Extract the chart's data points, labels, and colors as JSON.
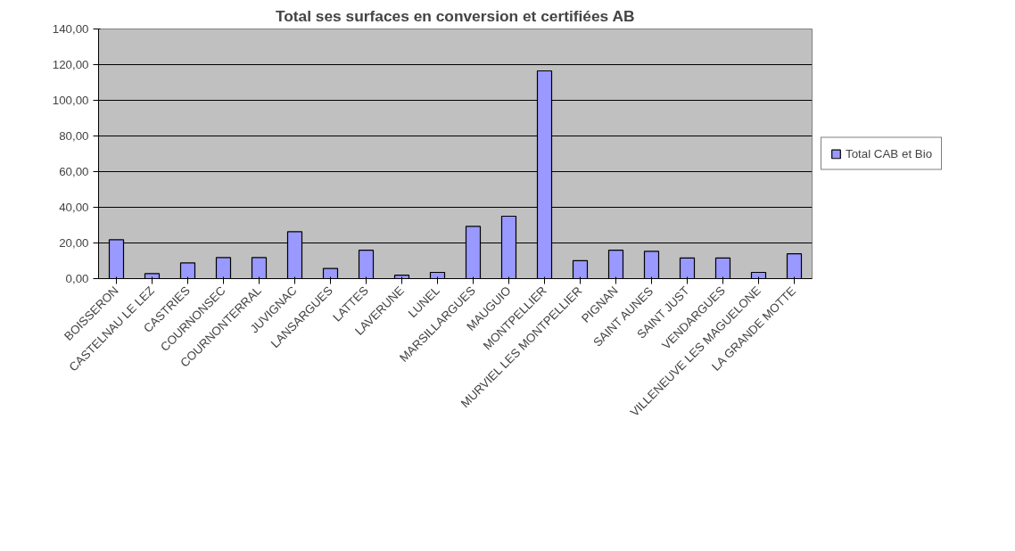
{
  "chart_data": {
    "type": "bar",
    "title": "Total ses surfaces en conversion et certifiées AB",
    "categories": [
      "BOISSERON",
      "CASTELNAU LE LEZ",
      "CASTRIES",
      "COURNONSEC",
      "COURNONTERRAL",
      "JUVIGNAC",
      "LANSARGUES",
      "LATTES",
      "LAVERUNE",
      "LUNEL",
      "MARSILLARGUES",
      "MAUGUIO",
      "MONTPELLIER",
      "MURVIEL LES MONTPELLIER",
      "PIGNAN",
      "SAINT AUNES",
      "SAINT JUST",
      "VENDARGUES",
      "VILLENEUVE LES MAGUELONE",
      "LA GRANDE MOTTE"
    ],
    "series": [
      {
        "name": "Total CAB et Bio",
        "color": "#9999ff",
        "values": [
          21.8,
          2.8,
          8.8,
          11.8,
          11.8,
          26.3,
          5.7,
          15.9,
          1.9,
          3.5,
          29.3,
          35.0,
          116.5,
          10.1,
          15.9,
          15.3,
          11.6,
          11.6,
          3.5,
          13.9
        ]
      }
    ],
    "ylim": [
      0,
      140
    ],
    "yticks": [
      {
        "value": 0,
        "label": "0,00"
      },
      {
        "value": 20,
        "label": "20,00"
      },
      {
        "value": 40,
        "label": "40,00"
      },
      {
        "value": 60,
        "label": "60,00"
      },
      {
        "value": 80,
        "label": "80,00"
      },
      {
        "value": 100,
        "label": "100,00"
      },
      {
        "value": 120,
        "label": "120,00"
      },
      {
        "value": 140,
        "label": "140,00"
      }
    ],
    "grid": "y",
    "legend": "right"
  }
}
